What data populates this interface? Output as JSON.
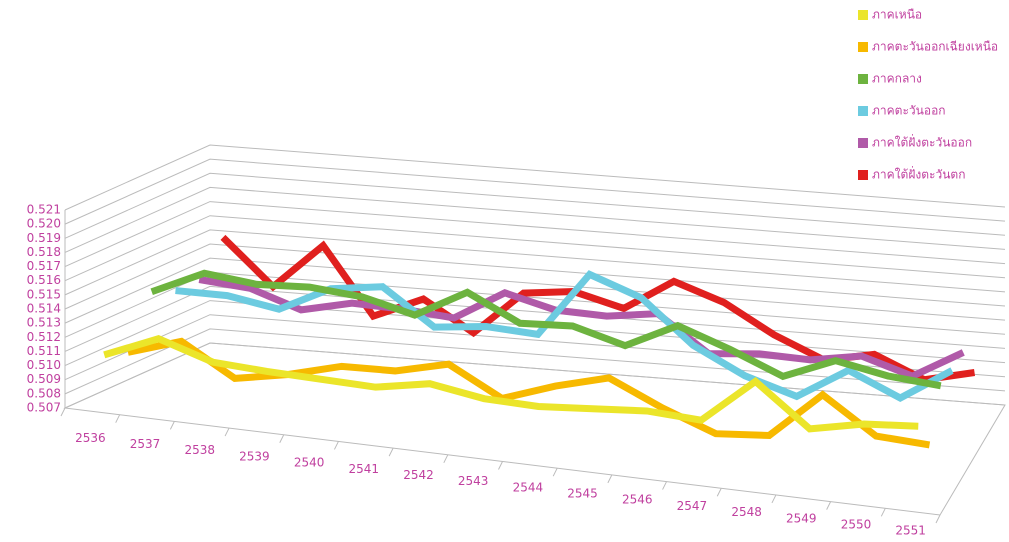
{
  "chart_data": {
    "type": "line3d",
    "categories": [
      "2536",
      "2537",
      "2538",
      "2539",
      "2540",
      "2541",
      "2542",
      "2543",
      "2544",
      "2545",
      "2546",
      "2547",
      "2548",
      "2549",
      "2550",
      "2551"
    ],
    "ylim": [
      0.507,
      0.521
    ],
    "yticks": [
      0.507,
      0.508,
      0.509,
      {
        "value": 0.51,
        "label": "0.510"
      },
      0.511,
      0.512,
      0.513,
      0.514,
      0.515,
      0.516,
      0.517,
      0.518,
      0.519,
      {
        "value": 0.52,
        "label": "0.520"
      },
      0.521
    ],
    "grid": true,
    "series": [
      {
        "name": "ภาคเหนือ",
        "color": "#ebe52a",
        "values": [
          0.5106,
          0.5122,
          0.511,
          0.5108,
          0.5107,
          0.5106,
          0.5113,
          0.5107,
          0.5106,
          0.5109,
          0.5112,
          0.511,
          0.5142,
          0.5113,
          0.5121,
          0.5124
        ]
      },
      {
        "name": "ภาคตะวันออกเฉียงเหนือ",
        "color": "#f7b900",
        "values": [
          0.51,
          0.5112,
          0.509,
          0.5097,
          0.5107,
          0.5108,
          0.5117,
          0.5097,
          0.511,
          0.512,
          0.5103,
          0.5089,
          0.5092,
          0.5125,
          0.51,
          0.5098
        ]
      },
      {
        "name": "ภาคกลาง",
        "color": "#6db33f",
        "values": [
          0.5135,
          0.5152,
          0.5148,
          0.515,
          0.5147,
          0.5138,
          0.5158,
          0.514,
          0.5142,
          0.5132,
          0.515,
          0.5137,
          0.5122,
          0.5137,
          0.513,
          0.5127
        ]
      },
      {
        "name": "ภาคตะวันออก",
        "color": "#6ccbe0",
        "values": [
          0.5128,
          0.5128,
          0.5122,
          0.514,
          0.5145,
          0.512,
          0.5124,
          0.5122,
          0.5168,
          0.5155,
          0.5125,
          0.5107,
          0.5096,
          0.5118,
          0.5102,
          0.5125
        ]
      },
      {
        "name": "ภาคใต้ฝั่งตะวันออก",
        "color": "#b05aa8",
        "values": [
          0.5128,
          0.5125,
          0.5113,
          0.5121,
          0.512,
          0.5117,
          0.5138,
          0.5129,
          0.5128,
          0.5133,
          0.5108,
          0.5111,
          0.511,
          0.5116,
          0.5105,
          0.5125
        ]
      },
      {
        "name": "ภาคใต้ฝั่งตะวันตก",
        "color": "#e0201e",
        "values": [
          0.515,
          0.5118,
          0.515,
          0.5103,
          0.5118,
          0.5097,
          0.5128,
          0.5132,
          0.5123,
          0.5145,
          0.5133,
          0.5113,
          0.5098,
          0.5105,
          0.509,
          0.5098
        ]
      }
    ]
  }
}
